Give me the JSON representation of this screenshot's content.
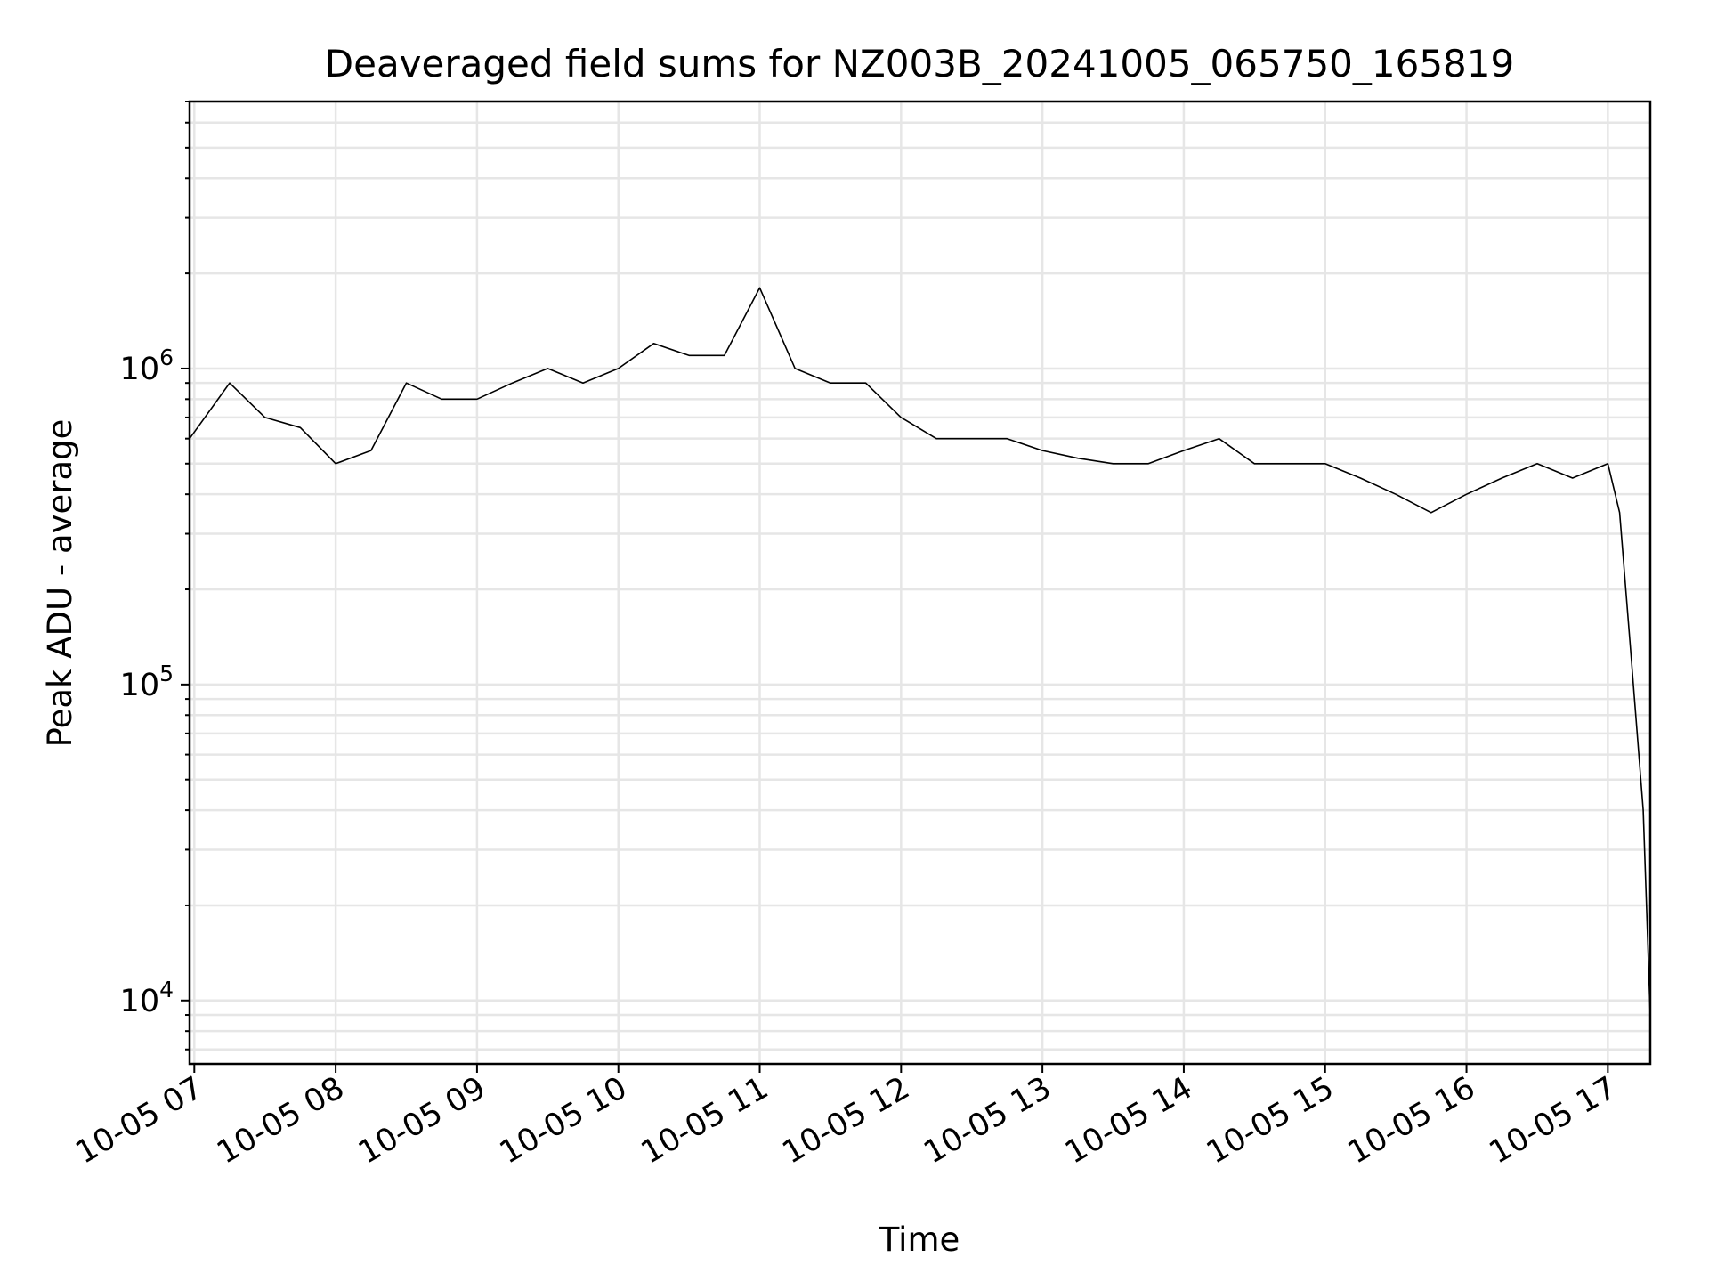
{
  "chart_data": {
    "type": "line",
    "title": "Deaveraged field sums for NZ003B_20241005_065750_165819",
    "xlabel": "Time",
    "ylabel": "Peak ADU - average",
    "yscale": "log",
    "xlim": [
      "2024-10-05 06:58",
      "2024-10-05 17:18"
    ],
    "ylim": [
      6300,
      7000000
    ],
    "grid": {
      "major": true,
      "minor": true
    },
    "legend": "none",
    "line_color": "#000000",
    "x_tick_labels": [
      "10-05 07",
      "10-05 08",
      "10-05 09",
      "10-05 10",
      "10-05 11",
      "10-05 12",
      "10-05 13",
      "10-05 14",
      "10-05 15",
      "10-05 16",
      "10-05 17"
    ],
    "x_tick_times": [
      "2024-10-05 07:00",
      "2024-10-05 08:00",
      "2024-10-05 09:00",
      "2024-10-05 10:00",
      "2024-10-05 11:00",
      "2024-10-05 12:00",
      "2024-10-05 13:00",
      "2024-10-05 14:00",
      "2024-10-05 15:00",
      "2024-10-05 16:00",
      "2024-10-05 17:00"
    ],
    "y_ticks": [
      {
        "value": 10000,
        "base": "10",
        "exp": "4"
      },
      {
        "value": 100000,
        "base": "10",
        "exp": "5"
      },
      {
        "value": 1000000,
        "base": "10",
        "exp": "6"
      }
    ],
    "series": [
      {
        "x": [
          "2024-10-05 06:58",
          "2024-10-05 07:15",
          "2024-10-05 07:30",
          "2024-10-05 07:45",
          "2024-10-05 08:00",
          "2024-10-05 08:15",
          "2024-10-05 08:30",
          "2024-10-05 08:45",
          "2024-10-05 09:00",
          "2024-10-05 09:15",
          "2024-10-05 09:30",
          "2024-10-05 09:45",
          "2024-10-05 10:00",
          "2024-10-05 10:15",
          "2024-10-05 10:30",
          "2024-10-05 10:45",
          "2024-10-05 11:00",
          "2024-10-05 11:15",
          "2024-10-05 11:30",
          "2024-10-05 11:45",
          "2024-10-05 12:00",
          "2024-10-05 12:15",
          "2024-10-05 12:30",
          "2024-10-05 12:45",
          "2024-10-05 13:00",
          "2024-10-05 13:15",
          "2024-10-05 13:30",
          "2024-10-05 13:45",
          "2024-10-05 14:00",
          "2024-10-05 14:15",
          "2024-10-05 14:30",
          "2024-10-05 14:45",
          "2024-10-05 15:00",
          "2024-10-05 15:15",
          "2024-10-05 15:30",
          "2024-10-05 15:45",
          "2024-10-05 16:00",
          "2024-10-05 16:15",
          "2024-10-05 16:30",
          "2024-10-05 16:45",
          "2024-10-05 17:00",
          "2024-10-05 17:05",
          "2024-10-05 17:10",
          "2024-10-05 17:15",
          "2024-10-05 17:18"
        ],
        "values": [
          600000,
          900000,
          700000,
          650000,
          500000,
          550000,
          900000,
          800000,
          800000,
          900000,
          1000000,
          900000,
          1000000,
          1200000,
          1100000,
          1100000,
          1800000,
          1000000,
          900000,
          900000,
          700000,
          600000,
          600000,
          600000,
          550000,
          520000,
          500000,
          500000,
          550000,
          600000,
          500000,
          500000,
          500000,
          450000,
          400000,
          350000,
          400000,
          450000,
          500000,
          450000,
          500000,
          350000,
          120000,
          40000,
          9000
        ]
      }
    ]
  }
}
